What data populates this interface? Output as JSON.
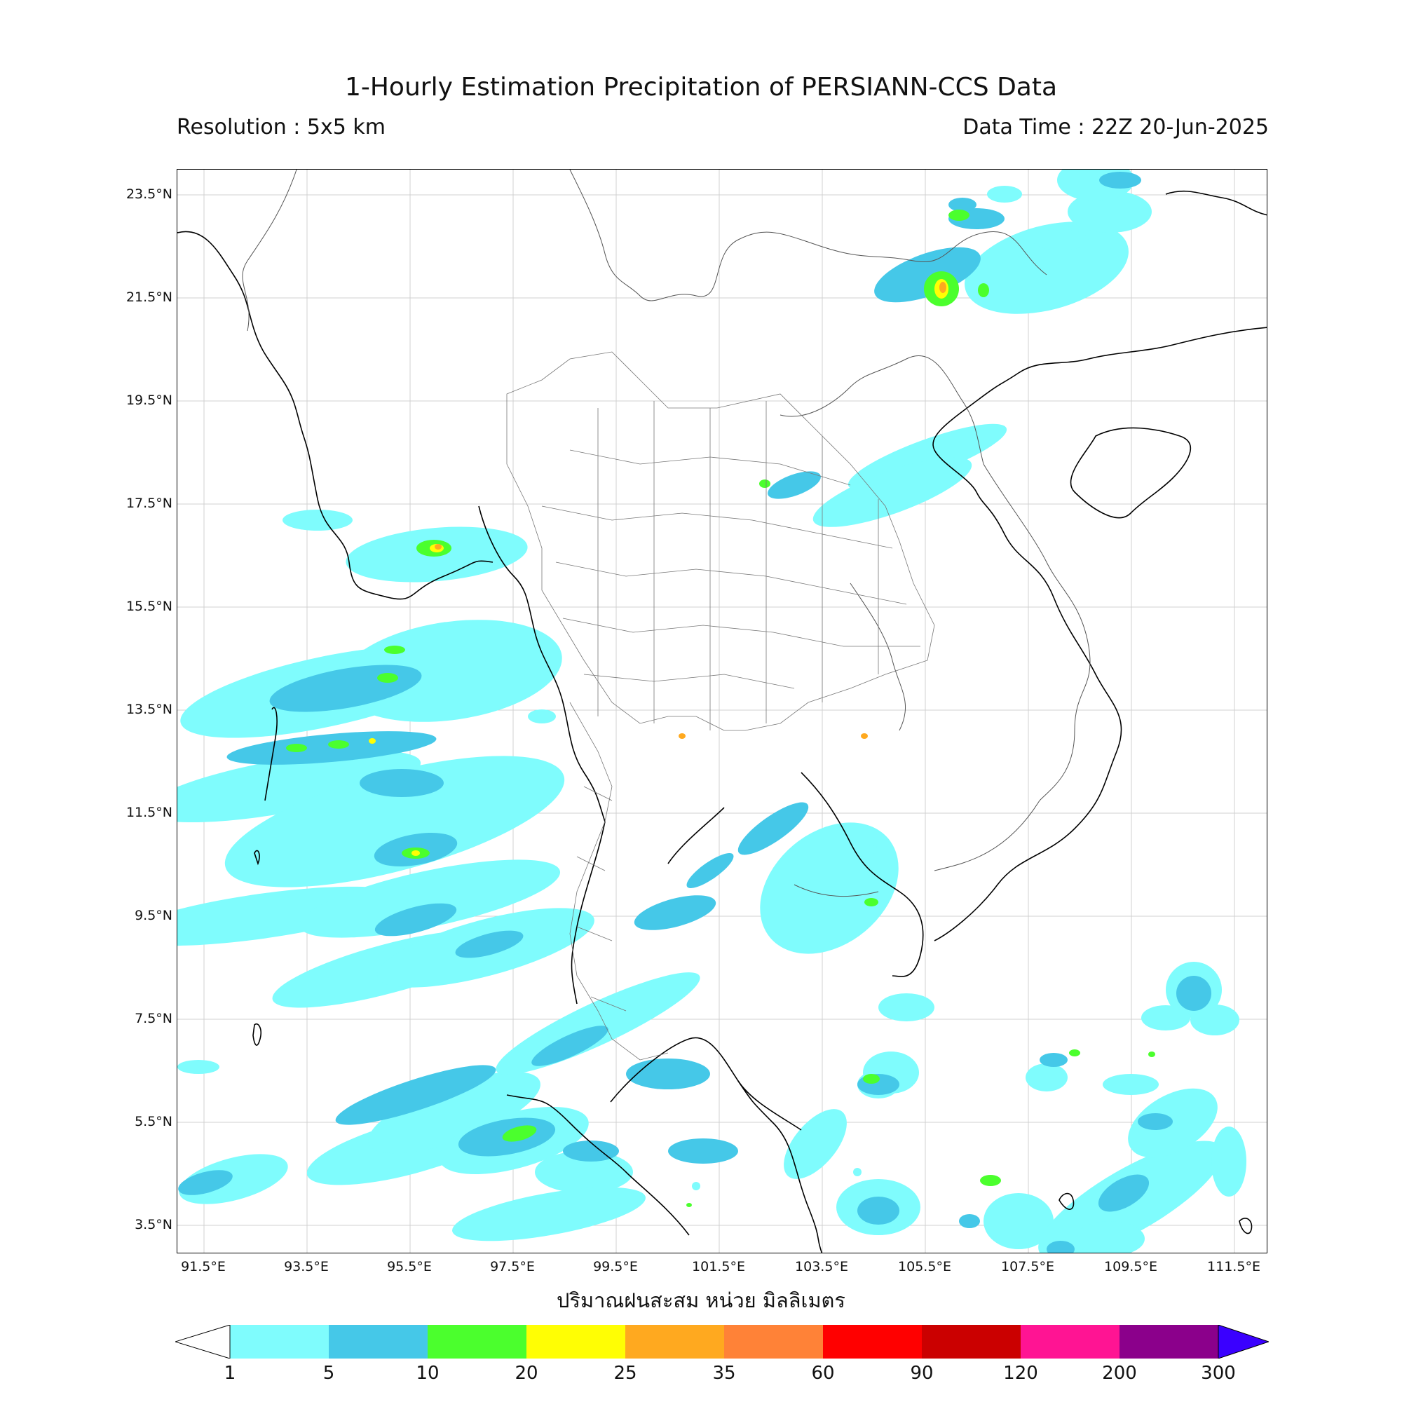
{
  "title": "1-Hourly Estimation Precipitation of PERSIANN-CCS Data",
  "resolution": "Resolution : 5x5 km",
  "data_time": "Data Time : 22Z 20-Jun-2025",
  "unit_label": "ปริมาณฝนสะสม หน่วย มิลลิเมตร",
  "lat_labels": [
    "23.5°N",
    "21.5°N",
    "19.5°N",
    "17.5°N",
    "15.5°N",
    "13.5°N",
    "11.5°N",
    "9.5°N",
    "7.5°N",
    "5.5°N",
    "3.5°N"
  ],
  "lon_labels": [
    "91.5°E",
    "93.5°E",
    "95.5°E",
    "97.5°E",
    "99.5°E",
    "101.5°E",
    "103.5°E",
    "105.5°E",
    "107.5°E",
    "109.5°E",
    "111.5°E"
  ],
  "colorbar": {
    "labels": [
      "1",
      "5",
      "10",
      "20",
      "25",
      "35",
      "60",
      "90",
      "120",
      "200",
      "300"
    ],
    "colors": [
      "#7ffcfd",
      "#45c8e8",
      "#4bff2d",
      "#fffe04",
      "#ffa91f",
      "#ff8237",
      "#ff0000",
      "#cb0000",
      "#ff1493",
      "#8b008b",
      "#3a00ff"
    ],
    "under_color": "#ffffff"
  },
  "colors": {
    "light_rain": "#7ffcfd",
    "moderate_rain": "#45c8e8",
    "heavy_rain": "#4bff2d",
    "very_heavy": "#fffe04",
    "intense": "#ffa91f"
  }
}
